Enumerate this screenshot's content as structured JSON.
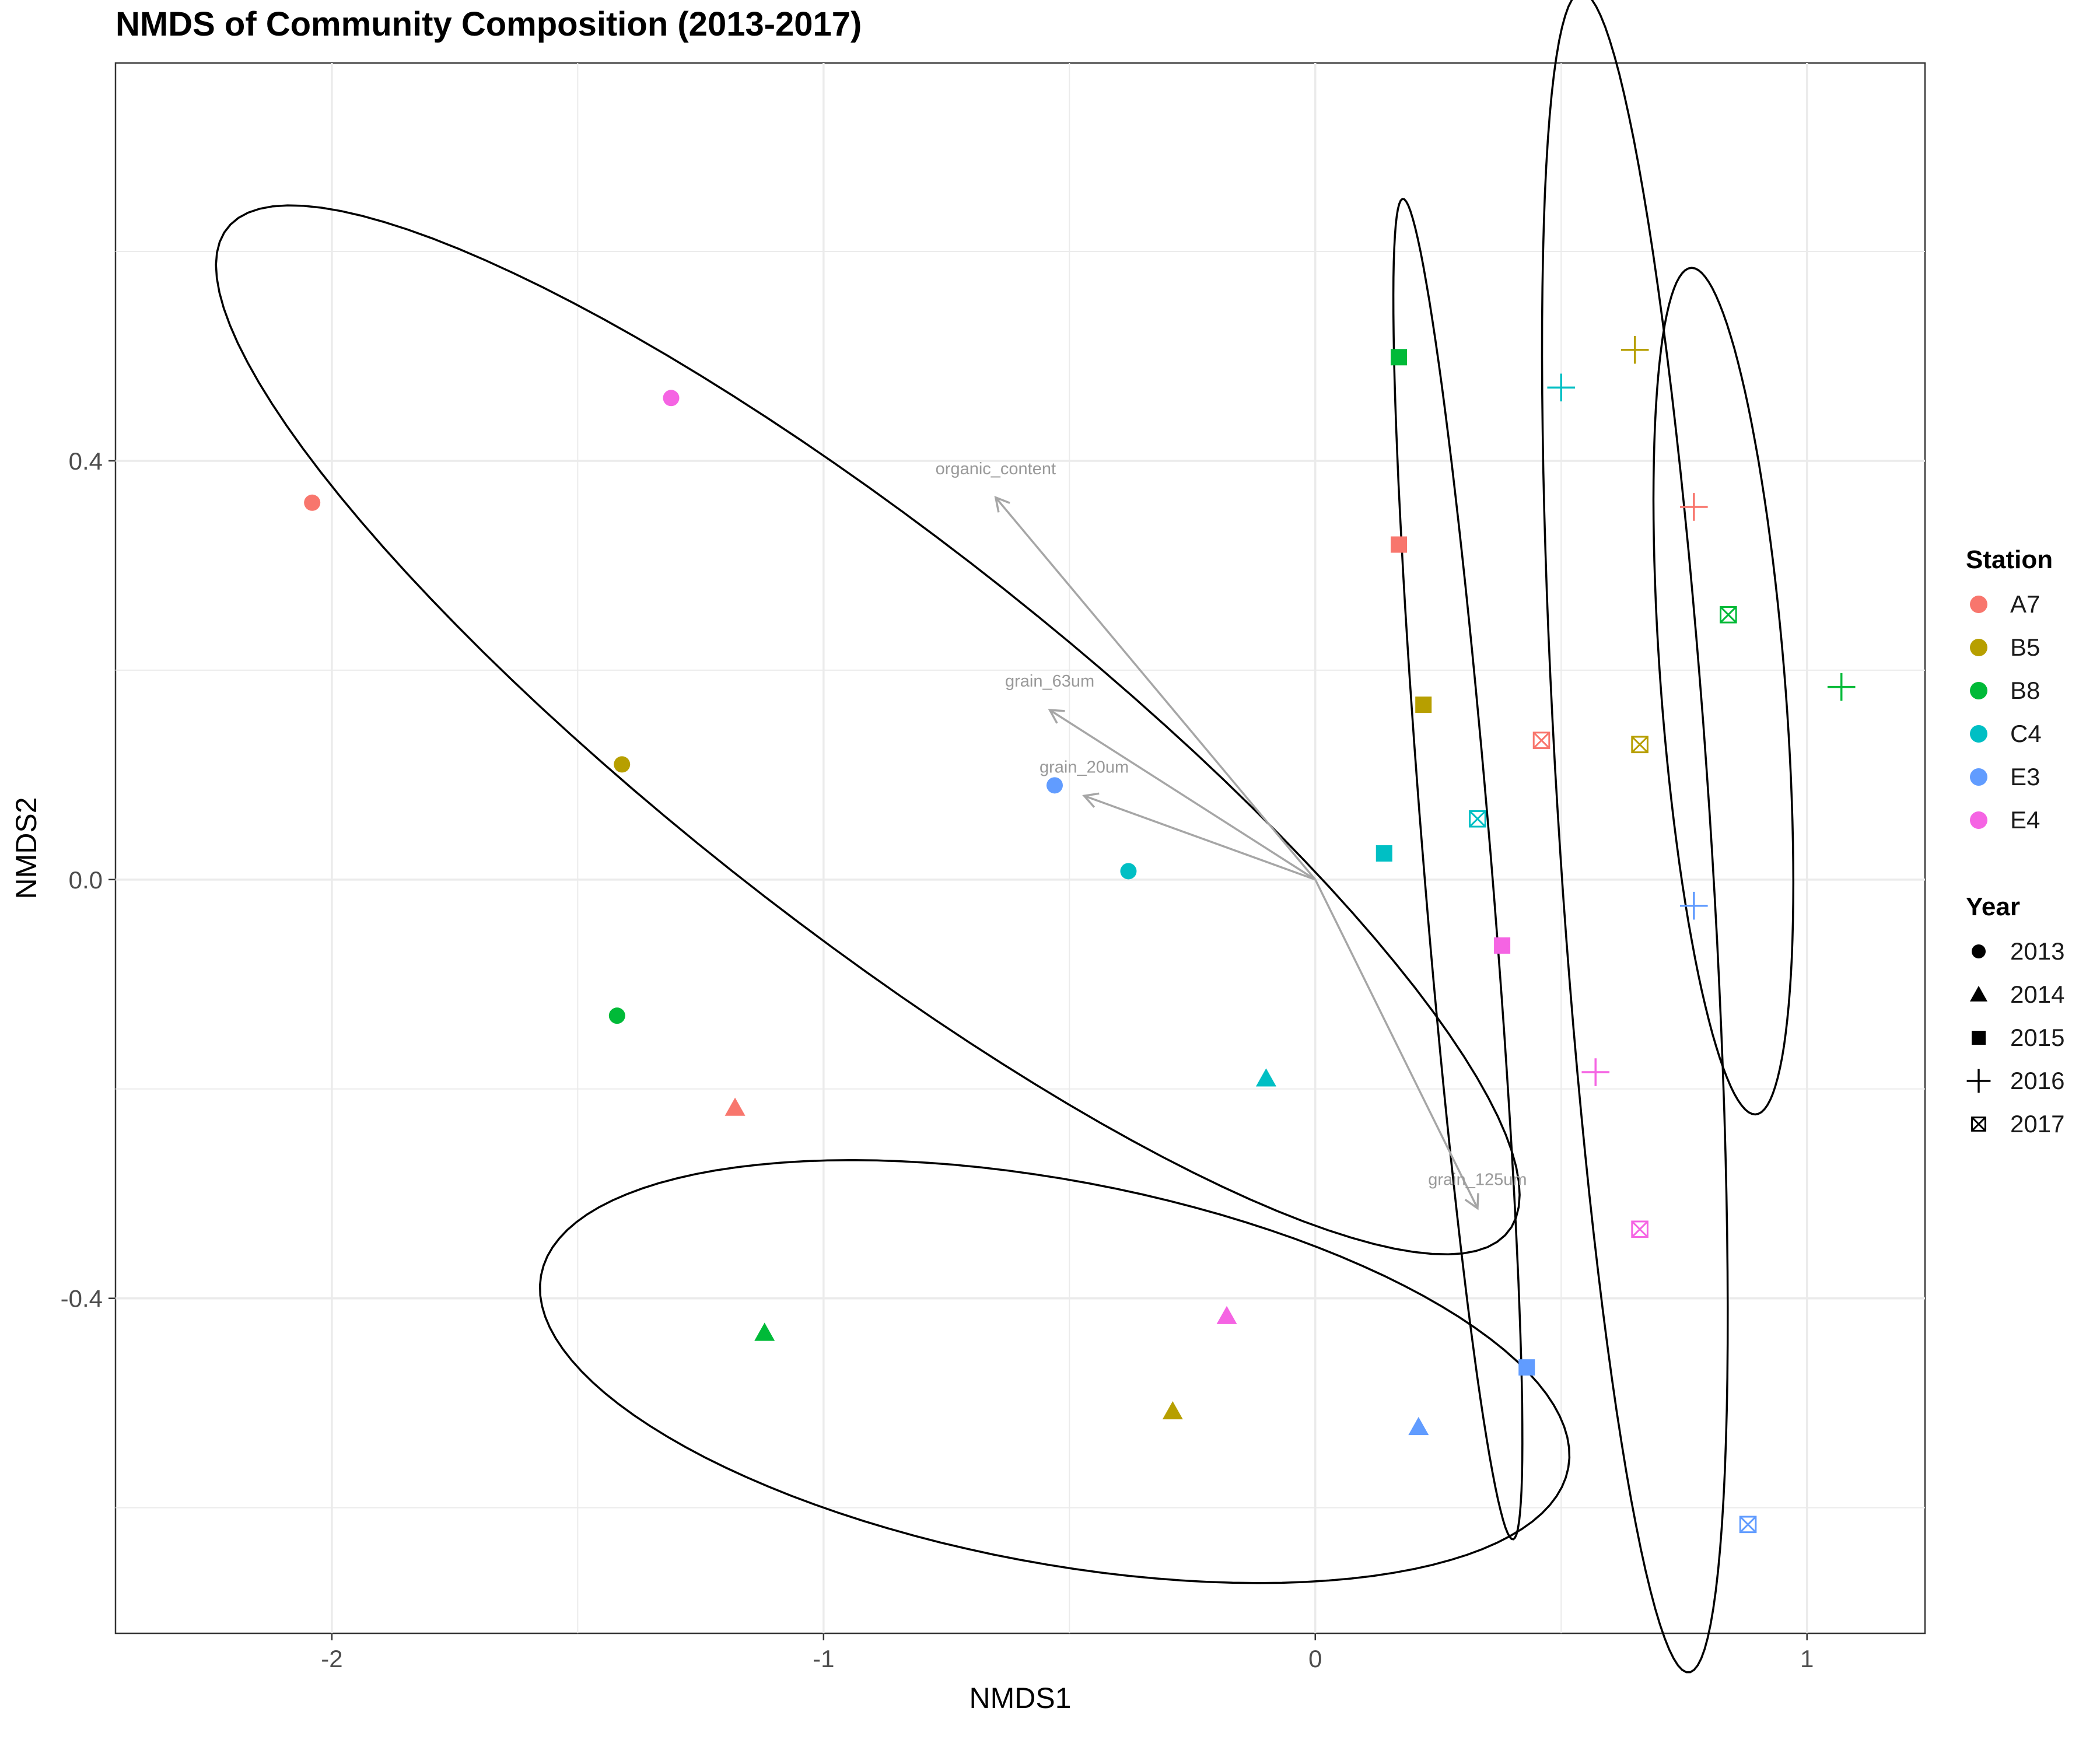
{
  "chart_data": {
    "type": "scatter",
    "title": "NMDS of Community Composition (2013-2017)",
    "xlabel": "NMDS1",
    "ylabel": "NMDS2",
    "xlim": [
      -2.44,
      1.24
    ],
    "ylim": [
      -0.72,
      0.78
    ],
    "x_ticks": [
      -2,
      -1,
      0,
      1
    ],
    "y_ticks": [
      -0.4,
      0.0,
      0.4
    ],
    "x_tick_labels": [
      "-2",
      "-1",
      "0",
      "1"
    ],
    "y_tick_labels": [
      "-0.4",
      "0.0",
      "0.4"
    ],
    "grid": true,
    "legend_position": "right",
    "station_legend_title": "Station",
    "year_legend_title": "Year",
    "stations": [
      {
        "name": "A7",
        "color": "#F8766D"
      },
      {
        "name": "B5",
        "color": "#B79F00"
      },
      {
        "name": "B8",
        "color": "#00BA38"
      },
      {
        "name": "C4",
        "color": "#00BFC4"
      },
      {
        "name": "E3",
        "color": "#619CFF"
      },
      {
        "name": "E4",
        "color": "#F564E3"
      }
    ],
    "years": [
      {
        "name": "2013",
        "shape": "circle"
      },
      {
        "name": "2014",
        "shape": "triangle"
      },
      {
        "name": "2015",
        "shape": "square"
      },
      {
        "name": "2016",
        "shape": "plus"
      },
      {
        "name": "2017",
        "shape": "square-cross"
      }
    ],
    "points": [
      {
        "station": "A7",
        "year": "2013",
        "x": -2.04,
        "y": 0.36
      },
      {
        "station": "B5",
        "year": "2013",
        "x": -1.41,
        "y": 0.11
      },
      {
        "station": "B8",
        "year": "2013",
        "x": -1.42,
        "y": -0.13
      },
      {
        "station": "C4",
        "year": "2013",
        "x": -0.38,
        "y": 0.008
      },
      {
        "station": "E3",
        "year": "2013",
        "x": -0.53,
        "y": 0.09
      },
      {
        "station": "E4",
        "year": "2013",
        "x": -1.31,
        "y": 0.46
      },
      {
        "station": "A7",
        "year": "2014",
        "x": -1.18,
        "y": -0.218
      },
      {
        "station": "B5",
        "year": "2014",
        "x": -0.29,
        "y": -0.508
      },
      {
        "station": "B8",
        "year": "2014",
        "x": -1.12,
        "y": -0.433
      },
      {
        "station": "C4",
        "year": "2014",
        "x": -0.1,
        "y": -0.19
      },
      {
        "station": "E3",
        "year": "2014",
        "x": 0.21,
        "y": -0.523
      },
      {
        "station": "E4",
        "year": "2014",
        "x": -0.18,
        "y": -0.417
      },
      {
        "station": "A7",
        "year": "2015",
        "x": 0.17,
        "y": 0.32
      },
      {
        "station": "B5",
        "year": "2015",
        "x": 0.22,
        "y": 0.167
      },
      {
        "station": "B8",
        "year": "2015",
        "x": 0.17,
        "y": 0.499
      },
      {
        "station": "C4",
        "year": "2015",
        "x": 0.14,
        "y": 0.025
      },
      {
        "station": "E3",
        "year": "2015",
        "x": 0.43,
        "y": -0.466
      },
      {
        "station": "E4",
        "year": "2015",
        "x": 0.38,
        "y": -0.063
      },
      {
        "station": "A7",
        "year": "2016",
        "x": 0.77,
        "y": 0.356
      },
      {
        "station": "B5",
        "year": "2016",
        "x": 0.65,
        "y": 0.506
      },
      {
        "station": "B8",
        "year": "2016",
        "x": 1.07,
        "y": 0.184
      },
      {
        "station": "C4",
        "year": "2016",
        "x": 0.5,
        "y": 0.47
      },
      {
        "station": "E3",
        "year": "2016",
        "x": 0.77,
        "y": -0.025
      },
      {
        "station": "E4",
        "year": "2016",
        "x": 0.57,
        "y": -0.184
      },
      {
        "station": "A7",
        "year": "2017",
        "x": 0.46,
        "y": 0.133
      },
      {
        "station": "B5",
        "year": "2017",
        "x": 0.66,
        "y": 0.129
      },
      {
        "station": "B8",
        "year": "2017",
        "x": 0.84,
        "y": 0.253
      },
      {
        "station": "C4",
        "year": "2017",
        "x": 0.33,
        "y": 0.058
      },
      {
        "station": "E3",
        "year": "2017",
        "x": 0.88,
        "y": -0.616
      },
      {
        "station": "E4",
        "year": "2017",
        "x": 0.66,
        "y": -0.334
      }
    ],
    "vectors": [
      {
        "label": "organic_content",
        "x": -0.65,
        "y": 0.365
      },
      {
        "label": "grain_63um",
        "x": -0.54,
        "y": 0.162
      },
      {
        "label": "grain_20um",
        "x": -0.47,
        "y": 0.08
      },
      {
        "label": "grain_125um",
        "x": 0.33,
        "y": -0.314
      }
    ],
    "ellipses": [
      {
        "group": "2013",
        "cx": -0.91,
        "cy": 0.143,
        "a": 1.4,
        "b": 0.22,
        "angle_deg": -19
      },
      {
        "group": "2014",
        "cx": -0.53,
        "cy": -0.47,
        "a": 1.05,
        "b": 0.185,
        "angle_deg": -4.5
      },
      {
        "group": "2015",
        "cx": 0.29,
        "cy": 0.01,
        "a": 0.65,
        "b": 0.068,
        "angle_deg": -80
      },
      {
        "group": "2016",
        "cx": 0.83,
        "cy": 0.18,
        "a": 0.41,
        "b": 0.125,
        "angle_deg": -80
      },
      {
        "group": "2017",
        "cx": 0.65,
        "cy": 0.045,
        "a": 0.81,
        "b": 0.153,
        "angle_deg": -82
      }
    ]
  }
}
